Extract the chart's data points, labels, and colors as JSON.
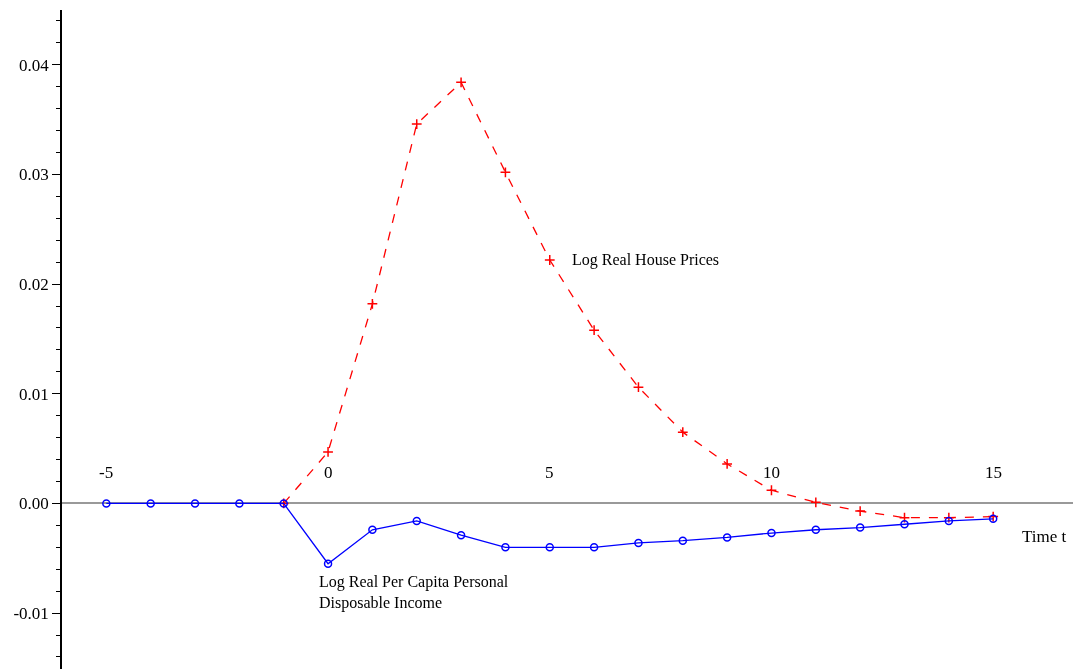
{
  "chart_data": {
    "type": "line",
    "xlabel": "Time t",
    "x": [
      -5,
      -4,
      -3,
      -2,
      -1,
      0,
      1,
      2,
      3,
      4,
      5,
      6,
      7,
      8,
      9,
      10,
      11,
      12,
      13,
      14,
      15
    ],
    "series": [
      {
        "name": "Log Real House Prices",
        "color": "#ff0000",
        "marker": "cross",
        "line_style": "dashed",
        "x": [
          -1,
          0,
          1,
          2,
          3,
          4,
          5,
          6,
          7,
          8,
          9,
          10,
          11,
          12,
          13,
          14,
          15
        ],
        "values": [
          0,
          0.0047,
          0.0182,
          0.0346,
          0.0384,
          0.0302,
          0.0222,
          0.0158,
          0.0106,
          0.0065,
          0.0036,
          0.0012,
          0.0001,
          -0.0007,
          -0.0013,
          -0.0013,
          -0.0012
        ]
      },
      {
        "name": "Log Real Per Capita Personal Disposable Income",
        "color": "#0000ff",
        "marker": "circle",
        "line_style": "solid",
        "values": [
          0,
          0,
          0,
          0,
          0,
          -0.0055,
          -0.0024,
          -0.0016,
          -0.0029,
          -0.004,
          -0.004,
          -0.004,
          -0.0036,
          -0.0034,
          -0.0031,
          -0.0027,
          -0.0024,
          -0.0022,
          -0.0019,
          -0.0016,
          -0.0014
        ]
      }
    ],
    "xlim": [
      -6,
      16.8
    ],
    "ylim": [
      -0.0151,
      0.045
    ],
    "xticks": [
      -5,
      0,
      5,
      10,
      15
    ],
    "yticks": [
      {
        "value": -0.01,
        "label": "-0.01"
      },
      {
        "value": 0,
        "label": "0.00"
      },
      {
        "value": 0.01,
        "label": "0.01"
      },
      {
        "value": 0.02,
        "label": "0.02"
      },
      {
        "value": 0.03,
        "label": "0.03"
      },
      {
        "value": 0.04,
        "label": "0.04"
      }
    ],
    "legend": false
  }
}
